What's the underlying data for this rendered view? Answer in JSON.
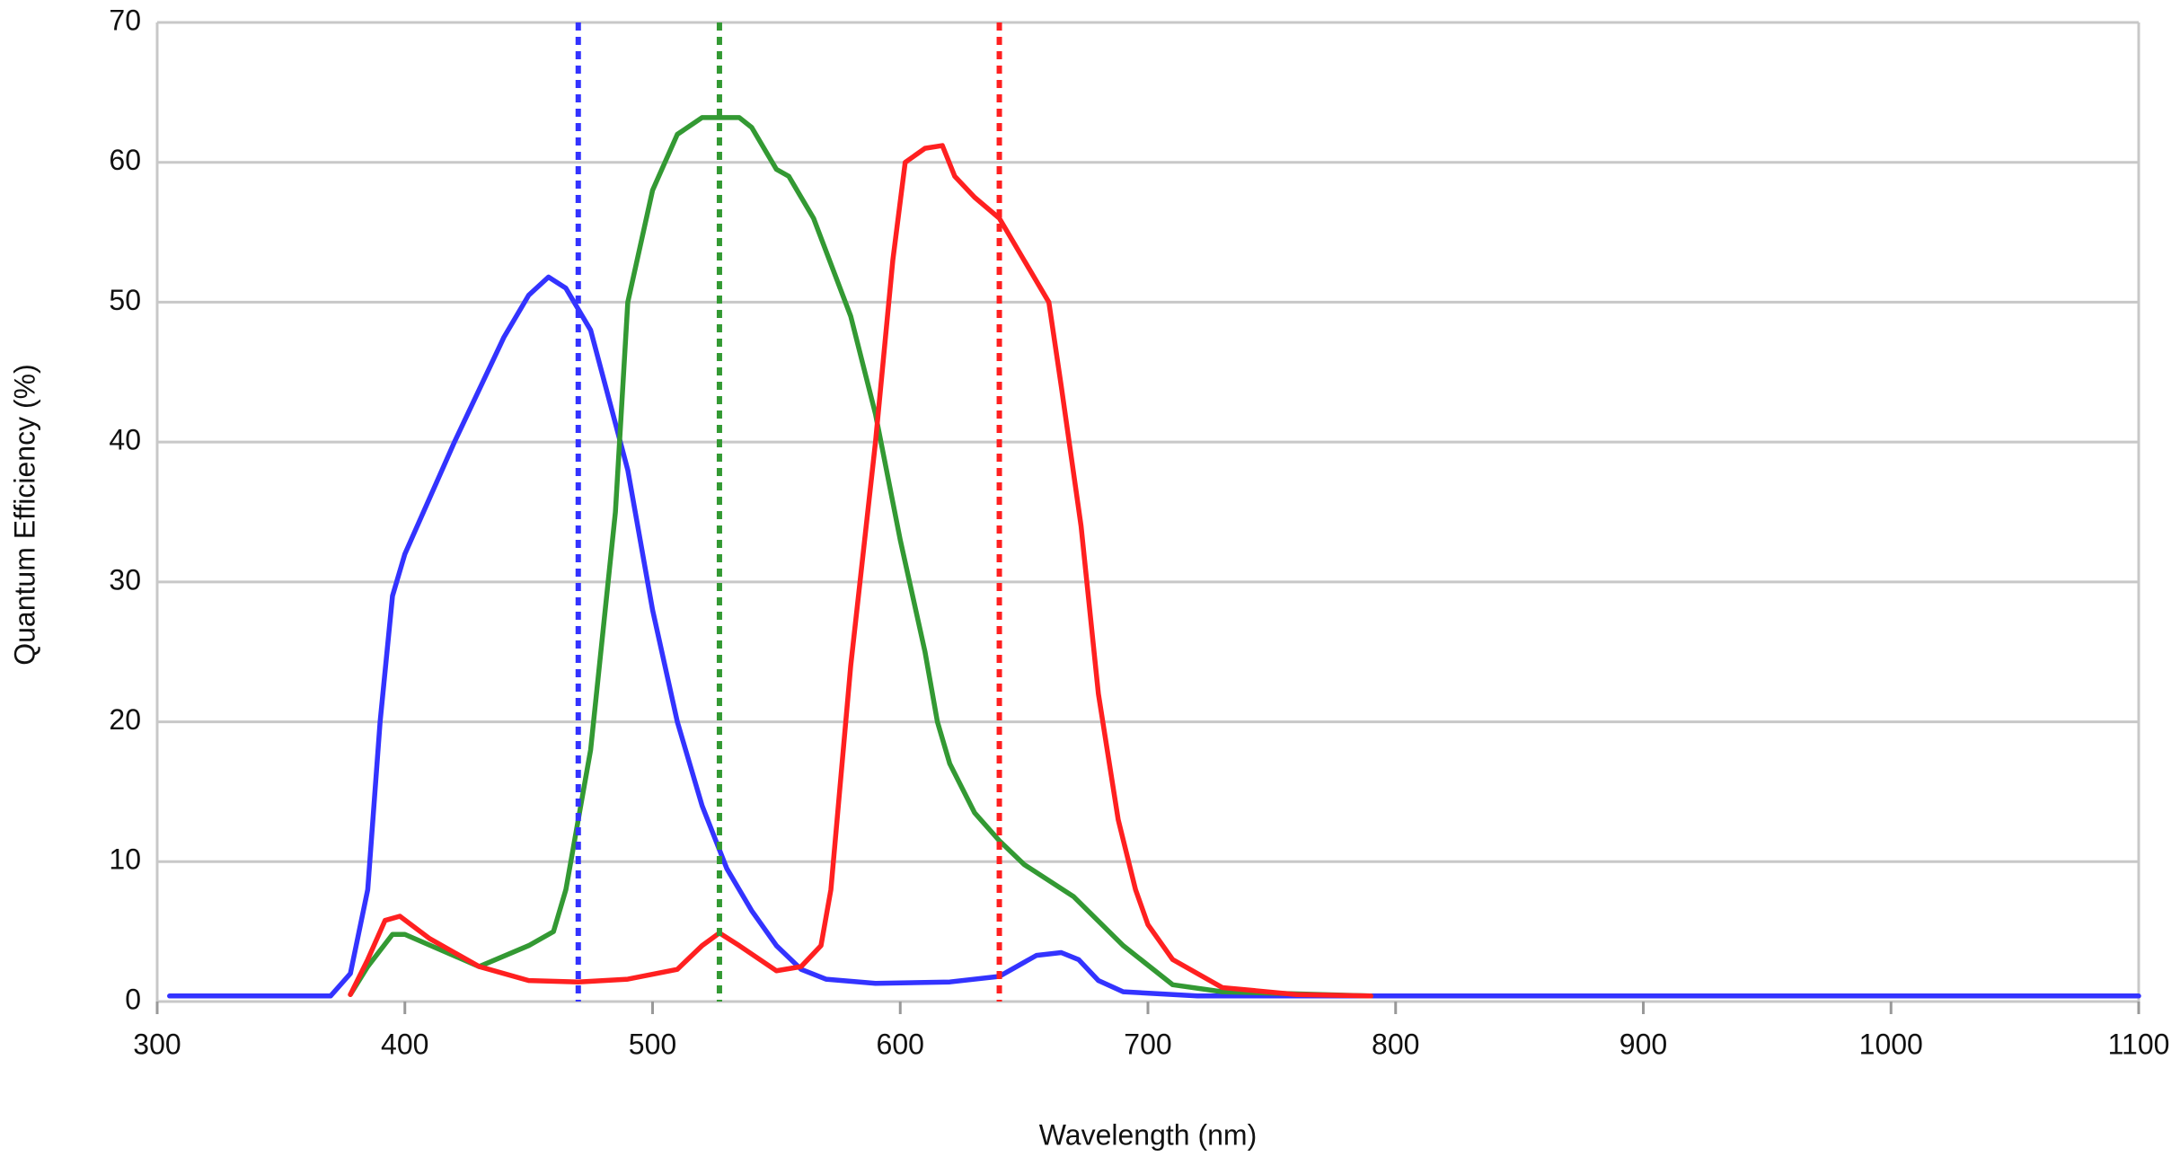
{
  "chart_data": {
    "type": "line",
    "xlabel": "Wavelength (nm)",
    "ylabel": "Quantum Efficiency (%)",
    "xlim": [
      300,
      1100
    ],
    "xticks": [
      300,
      400,
      500,
      600,
      700,
      800,
      900,
      1000,
      1100
    ],
    "ylim": [
      0,
      70
    ],
    "yticks": [
      0,
      10,
      20,
      30,
      40,
      50,
      60,
      70
    ],
    "grid": true,
    "vlines": [
      {
        "value": 470,
        "color": "#3333ff"
      },
      {
        "value": 527,
        "color": "#339933"
      },
      {
        "value": 640,
        "color": "#ff2020"
      }
    ],
    "series": [
      {
        "color": "#3333ff",
        "x": [
          305,
          370,
          378,
          385,
          390,
          395,
          400,
          420,
          440,
          450,
          458,
          465,
          475,
          490,
          500,
          510,
          520,
          530,
          540,
          550,
          560,
          570,
          590,
          620,
          640,
          645,
          655,
          665,
          672,
          680,
          690,
          720,
          800,
          1100
        ],
        "values": [
          0.4,
          0.4,
          2,
          8,
          20,
          29,
          32,
          40,
          47.5,
          50.5,
          51.8,
          51,
          48,
          38,
          28,
          20,
          14,
          9.5,
          6.5,
          4,
          2.3,
          1.6,
          1.3,
          1.4,
          1.8,
          2.3,
          3.3,
          3.5,
          3,
          1.5,
          0.7,
          0.4,
          0.4,
          0.4
        ]
      },
      {
        "color": "#339933",
        "x": [
          378,
          385,
          395,
          400,
          430,
          450,
          460,
          465,
          475,
          485,
          490,
          500,
          510,
          520,
          535,
          540,
          550,
          555,
          565,
          580,
          590,
          600,
          610,
          615,
          620,
          630,
          640,
          650,
          670,
          690,
          710,
          730,
          790
        ],
        "values": [
          0.5,
          2.5,
          4.8,
          4.8,
          2.5,
          4,
          5,
          8,
          18,
          35,
          50,
          58,
          62,
          63.2,
          63.2,
          62.5,
          59.5,
          59,
          56,
          49,
          42,
          33,
          25,
          20,
          17,
          13.5,
          11.5,
          9.8,
          7.5,
          4,
          1.2,
          0.7,
          0.4
        ]
      },
      {
        "color": "#ff2020",
        "x": [
          378,
          385,
          392,
          398,
          410,
          430,
          450,
          470,
          490,
          510,
          520,
          527,
          535,
          550,
          560,
          568,
          572,
          580,
          590,
          597,
          602,
          610,
          617,
          622,
          630,
          640,
          650,
          660,
          665,
          673,
          680,
          688,
          695,
          700,
          710,
          730,
          760,
          790
        ],
        "values": [
          0.5,
          3,
          5.8,
          6.1,
          4.5,
          2.5,
          1.5,
          1.4,
          1.6,
          2.3,
          4,
          4.9,
          4,
          2.2,
          2.5,
          4,
          8,
          24,
          40,
          53,
          60,
          61,
          61.2,
          59,
          57.5,
          56,
          53,
          50,
          44,
          34,
          22,
          13,
          8,
          5.5,
          3,
          1,
          0.5,
          0.4
        ]
      }
    ]
  }
}
